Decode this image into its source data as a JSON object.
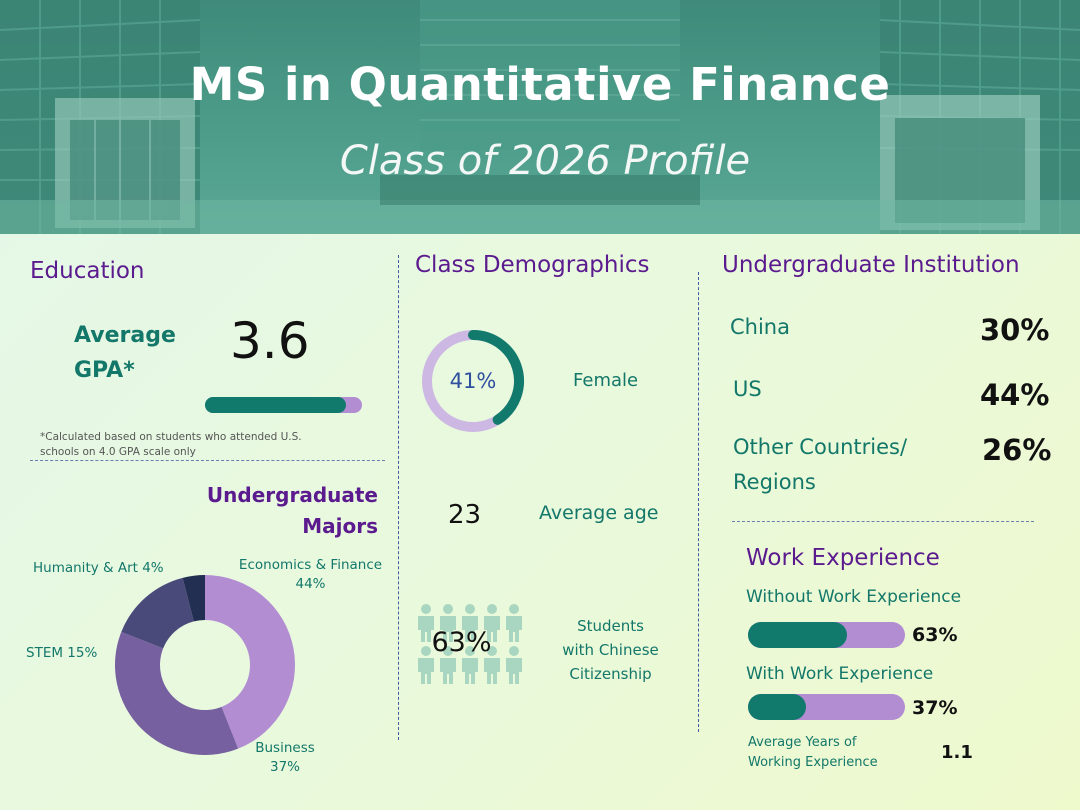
{
  "header": {
    "title": "MS in Quantitative Finance",
    "subtitle": "Class of 2026 Profile"
  },
  "education": {
    "heading": "Education",
    "gpa_label_line1": "Average",
    "gpa_label_line2": "GPA*",
    "gpa_value": "3.6",
    "gpa_fraction_of_scale": 0.9,
    "footnote_line1": "*Calculated based on students who attended U.S.",
    "footnote_line2": "schools on 4.0 GPA scale only"
  },
  "majors": {
    "heading_line1": "Undergraduate",
    "heading_line2": "Majors",
    "segments": [
      {
        "name": "Economics & Finance",
        "percent": "44%",
        "value": 44,
        "color": "#b28dd2"
      },
      {
        "name": "Business",
        "percent": "37%",
        "value": 37,
        "color": "#76609f"
      },
      {
        "name": "STEM",
        "percent": "15%",
        "value": 15,
        "color": "#4a4a7a"
      },
      {
        "name": "Humanity & Art",
        "percent": "4%",
        "value": 4,
        "color": "#222e52"
      }
    ],
    "label_econ_line1": "Economics & Finance",
    "label_econ_line2": "44%",
    "label_business_line1": "Business",
    "label_business_line2": "37%",
    "label_stem": "STEM 15%",
    "label_humanity": "Humanity & Art 4%"
  },
  "demographics": {
    "heading": "Class Demographics",
    "female_percent": "41%",
    "female_value": 41,
    "female_label": "Female",
    "ring_colors": {
      "filled": "#127a6c",
      "rest": "#cdb8e3"
    },
    "average_age": "23",
    "average_age_label": "Average age",
    "chinese_percent": "63%",
    "chinese_label_line1": "Students",
    "chinese_label_line2": "with Chinese",
    "chinese_label_line3": "Citizenship",
    "people_icon": "person-icon"
  },
  "institution": {
    "heading": "Undergraduate Institution",
    "china_label": "China",
    "china_value": "30%",
    "us_label": "US",
    "us_value": "44%",
    "other_label_line1": "Other Countries/",
    "other_label_line2": "Regions",
    "other_value": "26%"
  },
  "work": {
    "heading": "Work Experience",
    "without_label": "Without Work Experience",
    "without_value": "63%",
    "without_fraction": 0.63,
    "with_label": "With Work Experience",
    "with_value": "37%",
    "with_fraction": 0.37,
    "avg_years_label_line1": "Average Years of",
    "avg_years_label_line2": "Working Experience",
    "avg_years_value": "1.1"
  },
  "colors": {
    "heading_purple": "#5b1b8e",
    "teal": "#127a6c",
    "light_purple": "#b28dd2"
  }
}
